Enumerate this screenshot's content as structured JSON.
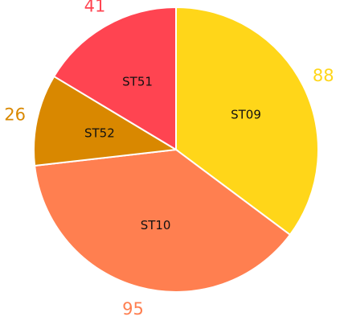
{
  "chart_data": {
    "type": "pie",
    "slices": [
      {
        "label": "ST09",
        "value": 88,
        "color": "#FFD619"
      },
      {
        "label": "ST10",
        "value": 95,
        "color": "#FF7F50"
      },
      {
        "label": "ST52",
        "value": 26,
        "color": "#D98800"
      },
      {
        "label": "ST51",
        "value": 41,
        "color": "#FF4451"
      }
    ],
    "start": "top",
    "direction": "clockwise",
    "legend": "none"
  }
}
